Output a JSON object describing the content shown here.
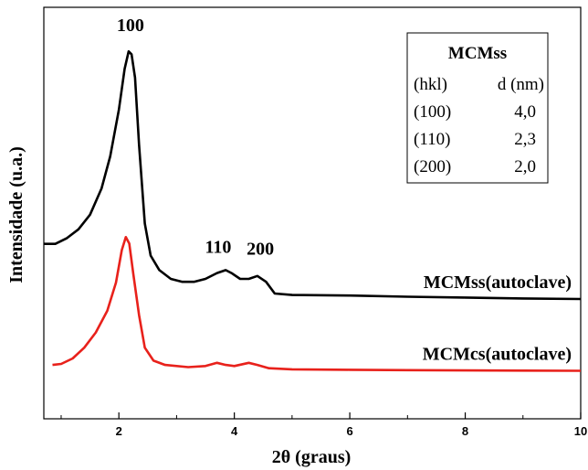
{
  "chart_data": {
    "type": "line",
    "xlabel": "2θ (graus)",
    "ylabel": "Intensidade (u.a.)",
    "xlim": [
      0.7,
      10
    ],
    "ylim": [
      0,
      100
    ],
    "x_ticks": [
      "2",
      "4",
      "6",
      "8",
      "10"
    ],
    "y_ticks_labeled": false,
    "grid": false,
    "series": [
      {
        "name": "MCMss(autoclave)",
        "color": "#000000",
        "points": [
          [
            0.7,
            33
          ],
          [
            0.9,
            33
          ],
          [
            1.1,
            35
          ],
          [
            1.3,
            38
          ],
          [
            1.5,
            43
          ],
          [
            1.7,
            52
          ],
          [
            1.85,
            63
          ],
          [
            2.0,
            79
          ],
          [
            2.1,
            93
          ],
          [
            2.17,
            99
          ],
          [
            2.22,
            98
          ],
          [
            2.28,
            90
          ],
          [
            2.35,
            67
          ],
          [
            2.45,
            40
          ],
          [
            2.55,
            29
          ],
          [
            2.7,
            24
          ],
          [
            2.9,
            21
          ],
          [
            3.1,
            20
          ],
          [
            3.3,
            20
          ],
          [
            3.5,
            21
          ],
          [
            3.7,
            23
          ],
          [
            3.85,
            24
          ],
          [
            3.95,
            23
          ],
          [
            4.1,
            21
          ],
          [
            4.25,
            21
          ],
          [
            4.4,
            22
          ],
          [
            4.55,
            20
          ],
          [
            4.7,
            16
          ],
          [
            5.0,
            15.5
          ],
          [
            6.0,
            15.3
          ],
          [
            7.0,
            14.9
          ],
          [
            8.0,
            14.6
          ],
          [
            9.0,
            14.3
          ],
          [
            10.0,
            14.1
          ]
        ]
      },
      {
        "name": "MCMcs(autoclave)",
        "color": "#e8211b",
        "points": [
          [
            0.85,
            5
          ],
          [
            1.0,
            5.5
          ],
          [
            1.2,
            8
          ],
          [
            1.4,
            13
          ],
          [
            1.6,
            20
          ],
          [
            1.8,
            30
          ],
          [
            1.95,
            43
          ],
          [
            2.05,
            58
          ],
          [
            2.12,
            64
          ],
          [
            2.18,
            61
          ],
          [
            2.25,
            47
          ],
          [
            2.35,
            28
          ],
          [
            2.45,
            13
          ],
          [
            2.6,
            7
          ],
          [
            2.8,
            5
          ],
          [
            3.2,
            4
          ],
          [
            3.5,
            4.5
          ],
          [
            3.7,
            6
          ],
          [
            3.85,
            5
          ],
          [
            4.0,
            4.5
          ],
          [
            4.25,
            6
          ],
          [
            4.4,
            5
          ],
          [
            4.6,
            3.5
          ],
          [
            5.0,
            3
          ],
          [
            6.0,
            2.8
          ],
          [
            7.0,
            2.6
          ],
          [
            8.0,
            2.5
          ],
          [
            9.0,
            2.4
          ],
          [
            10.0,
            2.3
          ]
        ]
      }
    ],
    "peak_labels": [
      {
        "text": "100",
        "x": 2.2,
        "y": 104
      },
      {
        "text": "110",
        "x": 3.72,
        "y": 28
      },
      {
        "text": "200",
        "x": 4.45,
        "y": 27.5
      }
    ],
    "inset_table": {
      "title": "MCMss",
      "headers": [
        "(hkl)",
        "d (nm)"
      ],
      "rows": [
        [
          "(100)",
          "4,0"
        ],
        [
          "(110)",
          "2,3"
        ],
        [
          "(200)",
          "2,0"
        ]
      ]
    }
  }
}
